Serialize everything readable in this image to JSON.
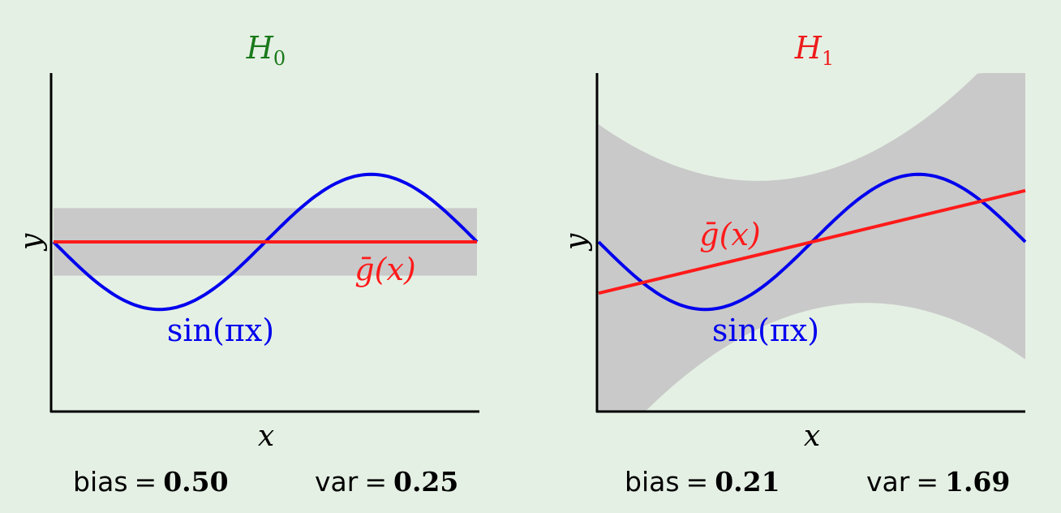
{
  "chart_data": [
    {
      "type": "line",
      "title": "H",
      "title_subscript": "0",
      "title_color": "#1a7a1a",
      "xlabel": "x",
      "ylabel": "y",
      "xlim": [
        -1,
        1
      ],
      "ylim": [
        -2.5,
        2.5
      ],
      "target": {
        "label": "sin(πx)",
        "color": "#0000ee",
        "function": "sin(pi*x)"
      },
      "average_hypothesis": {
        "label": "ḡ(x)",
        "color": "#ff1a1a",
        "intercept": 0,
        "slope": 0
      },
      "variance_band": {
        "color": "#c9c9c9",
        "halfwidth_at_x": {
          "-1": 0.5,
          "0": 0.5,
          "1": 0.5
        }
      },
      "bias_label": "bias",
      "bias_value": "0.50",
      "var_label": "var",
      "var_value": "0.25"
    },
    {
      "type": "line",
      "title": "H",
      "title_subscript": "1",
      "title_color": "#ee1c1c",
      "xlabel": "x",
      "ylabel": "y",
      "xlim": [
        -1,
        1
      ],
      "ylim": [
        -2.5,
        2.5
      ],
      "target": {
        "label": "sin(πx)",
        "color": "#0000ee",
        "function": "sin(pi*x)"
      },
      "average_hypothesis": {
        "label": "ḡ(x)",
        "color": "#ff1a1a",
        "intercept": 0,
        "slope": 0.76
      },
      "variance_band": {
        "color": "#c9c9c9",
        "halfwidth_at_x": {
          "-1": 2.5,
          "0": 1.0,
          "1": 2.5
        }
      },
      "bias_label": "bias",
      "bias_value": "0.21",
      "var_label": "var",
      "var_value": "1.69"
    }
  ],
  "equals_sign": "="
}
